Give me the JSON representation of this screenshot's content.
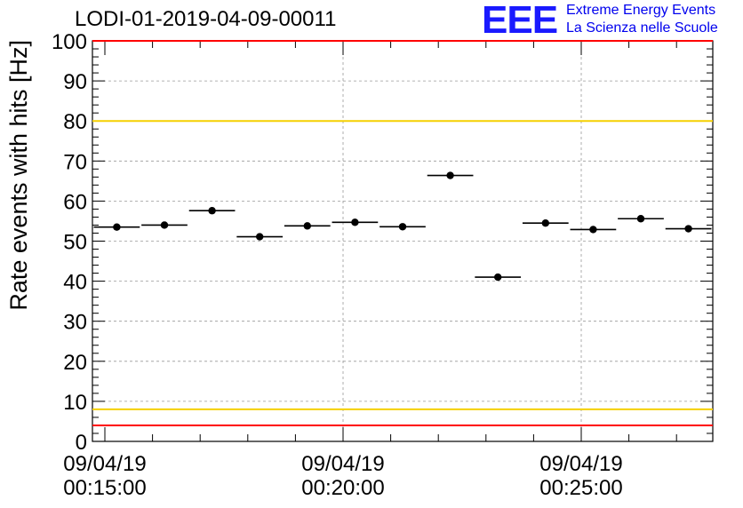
{
  "chart_data": {
    "type": "scatter",
    "title": "LODI-01-2019-04-09-00011",
    "ylabel": "Rate events with hits [Hz]",
    "xlabel": "",
    "ylim": [
      0,
      100
    ],
    "yticks": [
      0,
      10,
      20,
      30,
      40,
      50,
      60,
      70,
      80,
      90,
      100
    ],
    "xticks": [
      {
        "date": "09/04/19",
        "time": "00:15:00"
      },
      {
        "date": "09/04/19",
        "time": "00:20:00"
      },
      {
        "date": "09/04/19",
        "time": "00:25:00"
      }
    ],
    "grid": true,
    "points": [
      {
        "x": "00:15:15",
        "xerr_s": 20,
        "y": 53.5
      },
      {
        "x": "00:16:15",
        "xerr_s": 20,
        "y": 54.0
      },
      {
        "x": "00:17:15",
        "xerr_s": 20,
        "y": 57.6
      },
      {
        "x": "00:18:15",
        "xerr_s": 20,
        "y": 51.1
      },
      {
        "x": "00:19:15",
        "xerr_s": 20,
        "y": 53.8
      },
      {
        "x": "00:20:15",
        "xerr_s": 20,
        "y": 54.7
      },
      {
        "x": "00:21:15",
        "xerr_s": 20,
        "y": 53.6
      },
      {
        "x": "00:22:15",
        "xerr_s": 20,
        "y": 66.4
      },
      {
        "x": "00:23:15",
        "xerr_s": 20,
        "y": 41.0
      },
      {
        "x": "00:24:15",
        "xerr_s": 20,
        "y": 54.5
      },
      {
        "x": "00:25:15",
        "xerr_s": 20,
        "y": 52.9
      },
      {
        "x": "00:26:15",
        "xerr_s": 20,
        "y": 55.6
      },
      {
        "x": "00:27:15",
        "xerr_s": 20,
        "y": 53.1
      }
    ],
    "reference_lines": [
      {
        "y": 100,
        "color": "#ff0000"
      },
      {
        "y": 80,
        "color": "#f5d000"
      },
      {
        "y": 8,
        "color": "#f5d000"
      },
      {
        "y": 4,
        "color": "#ff0000"
      }
    ]
  },
  "logo": {
    "mark": "EEE",
    "line1": "Extreme Energy Events",
    "line2": "La Scienza nelle Scuole",
    "color": "#0000ee"
  }
}
